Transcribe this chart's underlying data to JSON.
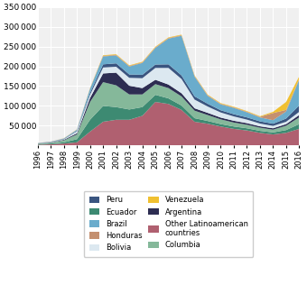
{
  "years": [
    1996,
    1997,
    1998,
    1999,
    2000,
    2001,
    2002,
    2003,
    2004,
    2005,
    2006,
    2007,
    2008,
    2009,
    2010,
    2011,
    2012,
    2013,
    2014,
    2015,
    2016
  ],
  "series": {
    "Other Latinoamerican countries": [
      2000,
      3000,
      5000,
      8000,
      35000,
      60000,
      65000,
      65000,
      75000,
      110000,
      105000,
      90000,
      60000,
      55000,
      48000,
      42000,
      38000,
      32000,
      28000,
      32000,
      42000
    ],
    "Ecuador": [
      1500,
      2000,
      3000,
      8000,
      30000,
      40000,
      32000,
      26000,
      22000,
      18000,
      14000,
      11000,
      9000,
      7000,
      6000,
      6000,
      5500,
      5000,
      5000,
      7000,
      12000
    ],
    "Columbia": [
      1000,
      2000,
      5000,
      12000,
      45000,
      60000,
      55000,
      38000,
      32000,
      27000,
      26000,
      23000,
      19000,
      15000,
      12000,
      10000,
      9000,
      8000,
      7000,
      11000,
      17000
    ],
    "Argentina": [
      500,
      800,
      1500,
      3000,
      10000,
      22000,
      32000,
      22000,
      16000,
      11000,
      9000,
      8000,
      6000,
      5500,
      4500,
      4500,
      4000,
      3500,
      3500,
      4000,
      6000
    ],
    "Bolivia": [
      400,
      700,
      1200,
      5000,
      8000,
      15000,
      15000,
      20000,
      25000,
      30000,
      42000,
      36000,
      22000,
      16000,
      13000,
      11000,
      9000,
      7000,
      6000,
      6000,
      8000
    ],
    "Peru": [
      300,
      500,
      900,
      1500,
      5000,
      8000,
      8500,
      8500,
      8500,
      8500,
      9000,
      9000,
      8000,
      7000,
      5500,
      5500,
      5500,
      5500,
      5500,
      8000,
      16000
    ],
    "Brazil": [
      400,
      700,
      1200,
      2500,
      10000,
      20000,
      20000,
      20000,
      30000,
      42000,
      65000,
      100000,
      50000,
      20000,
      15000,
      16000,
      13000,
      10000,
      9000,
      18000,
      65000
    ],
    "Honduras": [
      100,
      150,
      250,
      400,
      800,
      1500,
      1500,
      1500,
      1500,
      1500,
      1500,
      1500,
      1500,
      1500,
      1500,
      1500,
      1500,
      1500,
      18000,
      4000,
      2500
    ],
    "Venezuela": [
      100,
      150,
      250,
      400,
      800,
      1500,
      1500,
      1500,
      1500,
      1500,
      1500,
      1500,
      1500,
      1500,
      1500,
      1500,
      1500,
      1500,
      3000,
      20000,
      6000
    ]
  },
  "colors": {
    "Other Latinoamerican countries": "#b06070",
    "Ecuador": "#3d8a72",
    "Columbia": "#85b89a",
    "Argentina": "#2d2d52",
    "Bolivia": "#dce8f0",
    "Peru": "#3a5580",
    "Brazil": "#6aaccc",
    "Honduras": "#c49070",
    "Venezuela": "#f0c030"
  },
  "stack_order": [
    "Other Latinoamerican countries",
    "Ecuador",
    "Columbia",
    "Argentina",
    "Bolivia",
    "Peru",
    "Brazil",
    "Honduras",
    "Venezuela"
  ],
  "ylim": [
    0,
    350000
  ],
  "yticks": [
    50000,
    100000,
    150000,
    200000,
    250000,
    300000,
    350000
  ],
  "background_color": "#f0f0f0",
  "grid_color": "#ffffff",
  "legend_left": [
    "Peru",
    "Brazil",
    "Bolivia",
    "Argentina",
    "Columbia"
  ],
  "legend_right": [
    "Ecuador",
    "Honduras",
    "Venezuela",
    "Other Latinoamerican countries"
  ]
}
